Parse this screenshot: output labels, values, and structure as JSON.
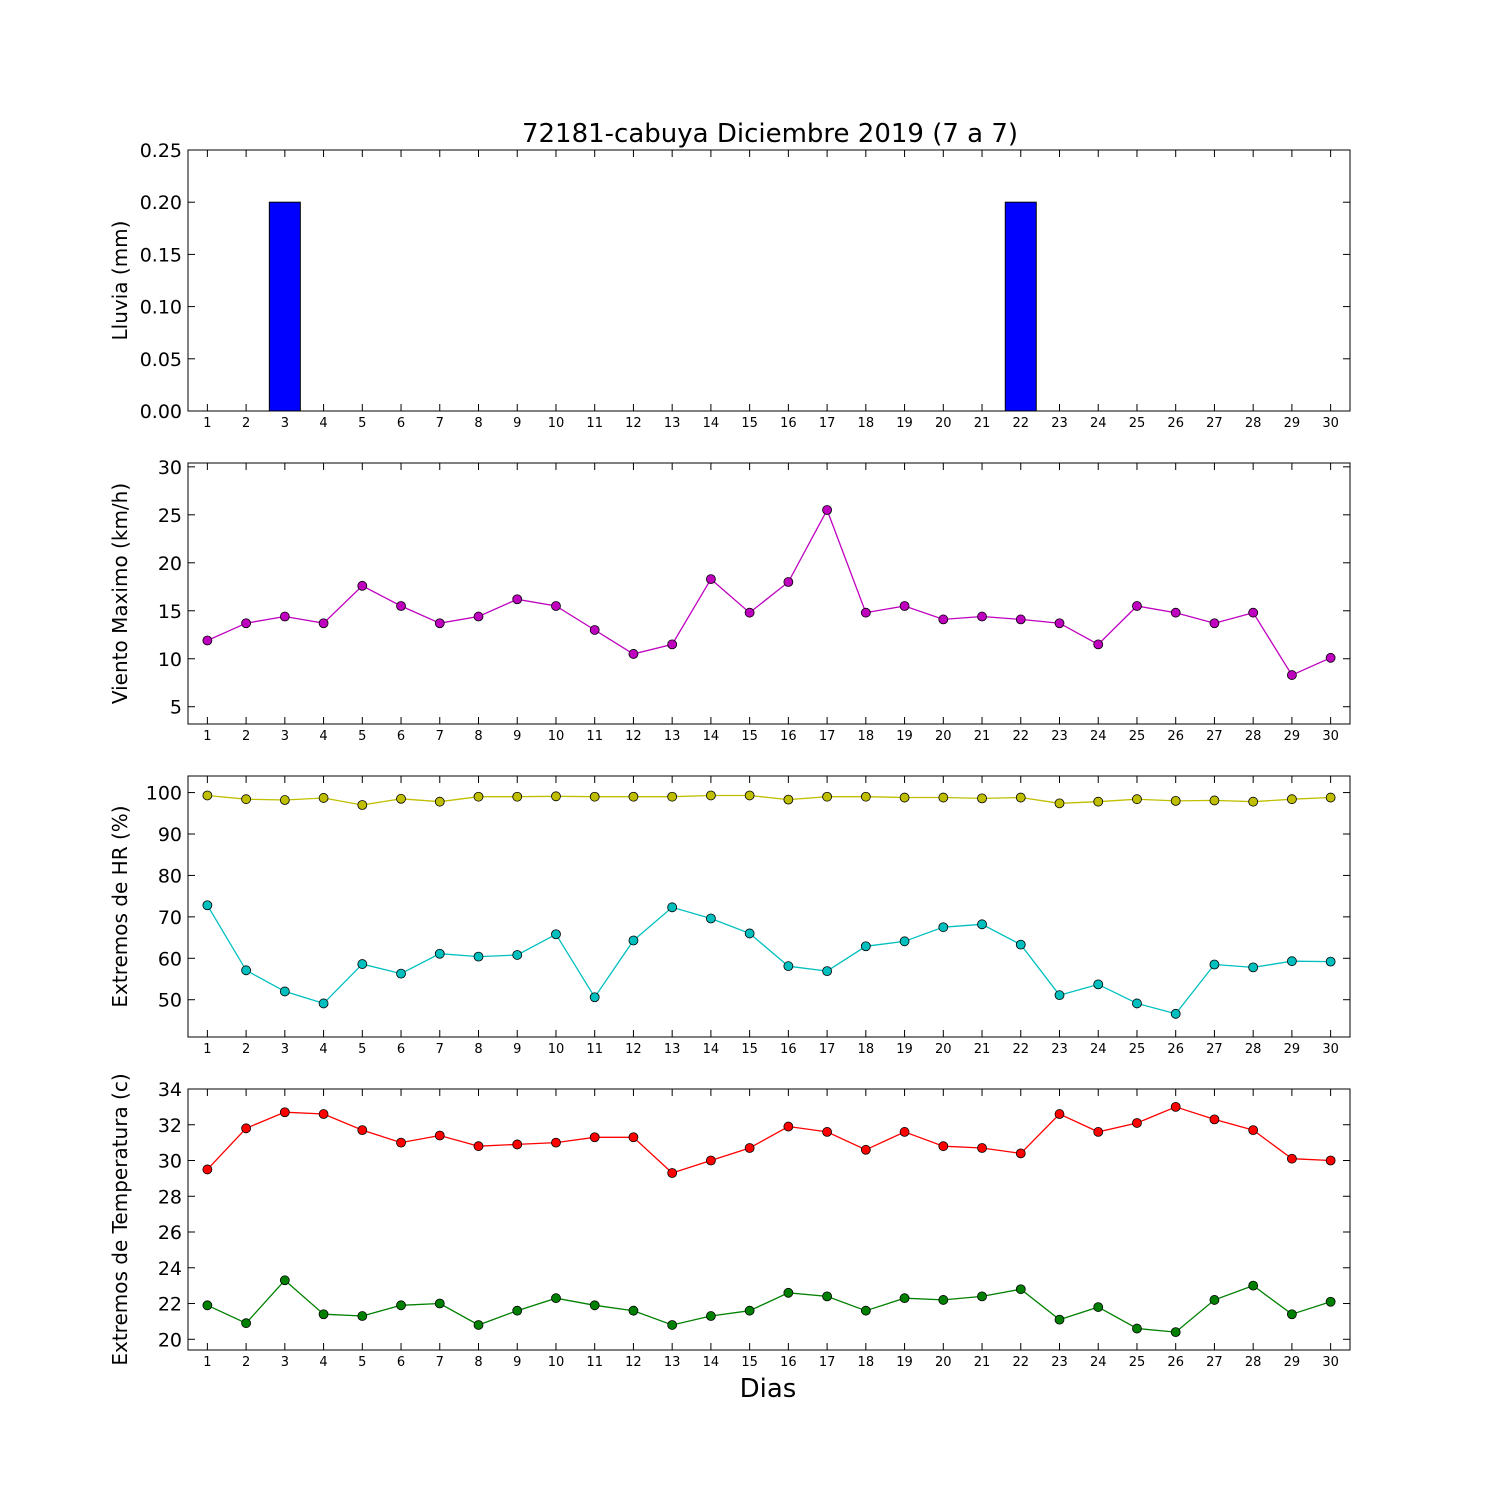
{
  "title": "72181-cabuya Diciembre 2019  (7 a 7)",
  "xlabel": "Dias",
  "chart_data": [
    {
      "type": "bar",
      "ylabel": "Lluvia (mm)",
      "ylim": [
        0,
        0.25
      ],
      "yticks": [
        "0.00",
        "0.05",
        "0.10",
        "0.15",
        "0.20",
        "0.25"
      ],
      "categories": [
        1,
        2,
        3,
        4,
        5,
        6,
        7,
        8,
        9,
        10,
        11,
        12,
        13,
        14,
        15,
        16,
        17,
        18,
        19,
        20,
        21,
        22,
        23,
        24,
        25,
        26,
        27,
        28,
        29,
        30
      ],
      "values": [
        0,
        0,
        0.2,
        0,
        0,
        0,
        0,
        0,
        0,
        0,
        0,
        0,
        0,
        0,
        0,
        0,
        0,
        0,
        0,
        0,
        0,
        0.2,
        0,
        0,
        0,
        0,
        0,
        0,
        0,
        0
      ],
      "color": "#0000ff"
    },
    {
      "type": "line",
      "ylabel": "Viento Maximo (km/h)",
      "ylim": [
        3.2,
        30.4
      ],
      "yticks": [
        "5",
        "10",
        "15",
        "20",
        "25",
        "30"
      ],
      "x": [
        1,
        2,
        3,
        4,
        5,
        6,
        7,
        8,
        9,
        10,
        11,
        12,
        13,
        14,
        15,
        16,
        17,
        18,
        19,
        20,
        21,
        22,
        23,
        24,
        25,
        26,
        27,
        28,
        29,
        30
      ],
      "series": [
        {
          "color": "#bf00bf",
          "values": [
            11.9,
            13.7,
            14.4,
            13.7,
            17.6,
            15.5,
            13.7,
            14.4,
            16.2,
            15.5,
            13.0,
            10.5,
            11.5,
            18.3,
            14.8,
            18.0,
            25.5,
            14.8,
            15.5,
            14.1,
            14.4,
            14.1,
            13.7,
            11.5,
            15.5,
            14.8,
            13.7,
            14.8,
            8.3,
            10.1
          ]
        }
      ]
    },
    {
      "type": "line",
      "ylabel": "Extremos de HR (%)",
      "ylim": [
        41,
        104
      ],
      "yticks": [
        "50",
        "60",
        "70",
        "80",
        "90",
        "100"
      ],
      "x": [
        1,
        2,
        3,
        4,
        5,
        6,
        7,
        8,
        9,
        10,
        11,
        12,
        13,
        14,
        15,
        16,
        17,
        18,
        19,
        20,
        21,
        22,
        23,
        24,
        25,
        26,
        27,
        28,
        29,
        30
      ],
      "series": [
        {
          "color": "#bfbf00",
          "values": [
            99.3,
            98.4,
            98.2,
            98.7,
            97.0,
            98.5,
            97.8,
            99.0,
            99.0,
            99.1,
            99.0,
            99.0,
            99.0,
            99.3,
            99.3,
            98.3,
            99.0,
            99.0,
            98.8,
            98.8,
            98.6,
            98.8,
            97.4,
            97.8,
            98.4,
            98.0,
            98.1,
            97.8,
            98.4,
            98.8
          ]
        },
        {
          "color": "#00bfbf",
          "values": [
            72.8,
            57.1,
            52.0,
            49.1,
            58.6,
            56.3,
            61.1,
            60.4,
            60.8,
            65.8,
            50.6,
            64.3,
            72.3,
            69.6,
            66.0,
            58.1,
            56.9,
            62.9,
            64.1,
            67.5,
            68.2,
            63.3,
            51.1,
            53.7,
            49.1,
            46.6,
            58.5,
            57.8,
            59.3,
            59.2
          ]
        }
      ]
    },
    {
      "type": "line",
      "ylabel": "Extremos de Temperatura (c)",
      "ylim": [
        19.4,
        34
      ],
      "yticks": [
        "20",
        "22",
        "24",
        "26",
        "28",
        "30",
        "32",
        "34"
      ],
      "x": [
        1,
        2,
        3,
        4,
        5,
        6,
        7,
        8,
        9,
        10,
        11,
        12,
        13,
        14,
        15,
        16,
        17,
        18,
        19,
        20,
        21,
        22,
        23,
        24,
        25,
        26,
        27,
        28,
        29,
        30
      ],
      "series": [
        {
          "color": "#ff0000",
          "values": [
            29.5,
            31.8,
            32.7,
            32.6,
            31.7,
            31.0,
            31.4,
            30.8,
            30.9,
            31.0,
            31.3,
            31.3,
            29.3,
            30.0,
            30.7,
            31.9,
            31.6,
            30.6,
            31.6,
            30.8,
            30.7,
            30.4,
            32.6,
            31.6,
            32.1,
            33.0,
            32.3,
            31.7,
            30.1,
            30.0
          ]
        },
        {
          "color": "#008000",
          "values": [
            21.9,
            20.9,
            23.3,
            21.4,
            21.3,
            21.9,
            22.0,
            20.8,
            21.6,
            22.3,
            21.9,
            21.6,
            20.8,
            21.3,
            21.6,
            22.6,
            22.4,
            21.6,
            22.3,
            22.2,
            22.4,
            22.8,
            21.1,
            21.8,
            20.6,
            20.4,
            22.2,
            23.0,
            21.4,
            22.1
          ]
        }
      ]
    }
  ]
}
